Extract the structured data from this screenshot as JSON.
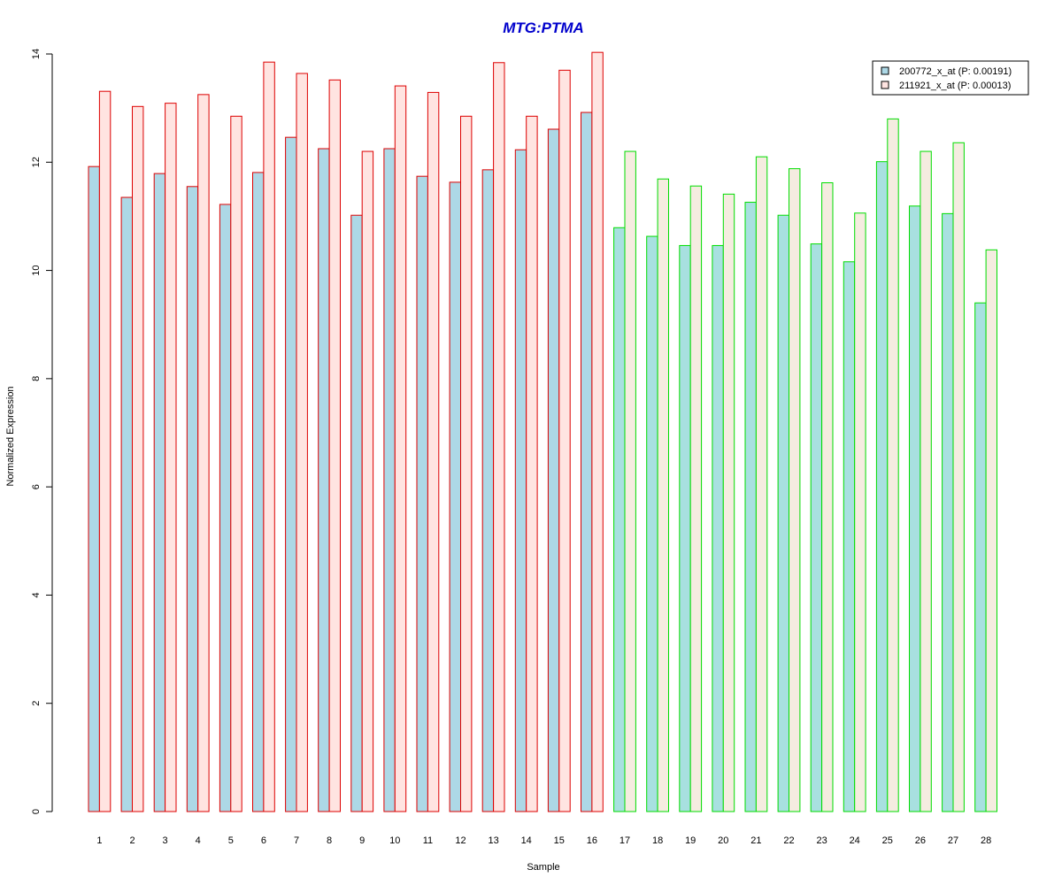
{
  "chart_data": {
    "type": "bar",
    "title": "MTG:PTMA",
    "xlabel": "Sample",
    "ylabel": "Normalized Expression",
    "ylim": [
      0,
      14
    ],
    "yticks": [
      0,
      2,
      4,
      6,
      8,
      10,
      12,
      14
    ],
    "grid": false,
    "legend_position": "top-right",
    "categories": [
      "1",
      "2",
      "3",
      "4",
      "5",
      "6",
      "7",
      "8",
      "9",
      "10",
      "11",
      "12",
      "13",
      "14",
      "15",
      "16",
      "17",
      "18",
      "19",
      "20",
      "21",
      "22",
      "23",
      "24",
      "25",
      "26",
      "27",
      "28"
    ],
    "group_sizes": [
      16,
      12
    ],
    "series": [
      {
        "name": "200772_x_at (P: 0.00191)",
        "values": [
          11.92,
          11.35,
          11.79,
          11.55,
          11.22,
          11.81,
          12.46,
          12.25,
          11.02,
          12.25,
          11.74,
          11.63,
          11.86,
          12.23,
          12.61,
          12.92,
          10.79,
          10.63,
          10.46,
          10.46,
          11.26,
          11.02,
          10.49,
          10.16,
          12.01,
          11.19,
          11.05,
          9.4
        ]
      },
      {
        "name": "211921_x_at (P: 0.00013)",
        "values": [
          13.31,
          13.03,
          13.09,
          13.25,
          12.85,
          13.85,
          13.64,
          13.52,
          12.2,
          13.41,
          13.29,
          12.85,
          13.84,
          12.85,
          13.7,
          14.03,
          12.2,
          11.69,
          11.56,
          11.41,
          12.1,
          11.88,
          11.62,
          11.06,
          12.8,
          12.2,
          12.36,
          10.38
        ]
      }
    ],
    "colors": {
      "title": "#0000cc",
      "series1_fill": "#add8e6",
      "series2_fill": "#ffe4e1",
      "group1_border": "#dd0000",
      "group2_border": "#00dd00",
      "series1_fill_group2": "#a8e0e0",
      "series2_fill_group2": "#f5ece0"
    }
  }
}
